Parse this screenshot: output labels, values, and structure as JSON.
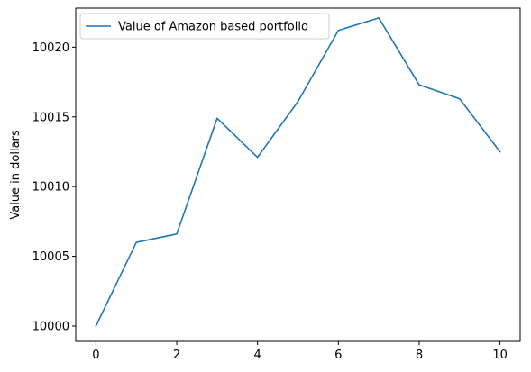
{
  "chart_data": {
    "type": "line",
    "title": "",
    "xlabel": "",
    "ylabel": "Value in dollars",
    "xlim": [
      -0.5,
      10.5
    ],
    "ylim": [
      9998.9,
      10022.8
    ],
    "xticks": [
      0,
      2,
      4,
      6,
      8,
      10
    ],
    "yticks": [
      10000,
      10005,
      10010,
      10015,
      10020
    ],
    "grid": false,
    "legend_position": "top-left",
    "series": [
      {
        "name": "Value of Amazon based portfolio",
        "color": "#1f77b4",
        "x": [
          0,
          1,
          2,
          3,
          4,
          5,
          6,
          7,
          8,
          9,
          10
        ],
        "y": [
          10000.0,
          10006.0,
          10006.6,
          10014.9,
          10012.1,
          10016.1,
          10021.2,
          10022.1,
          10017.3,
          10016.3,
          10012.5
        ]
      }
    ]
  }
}
